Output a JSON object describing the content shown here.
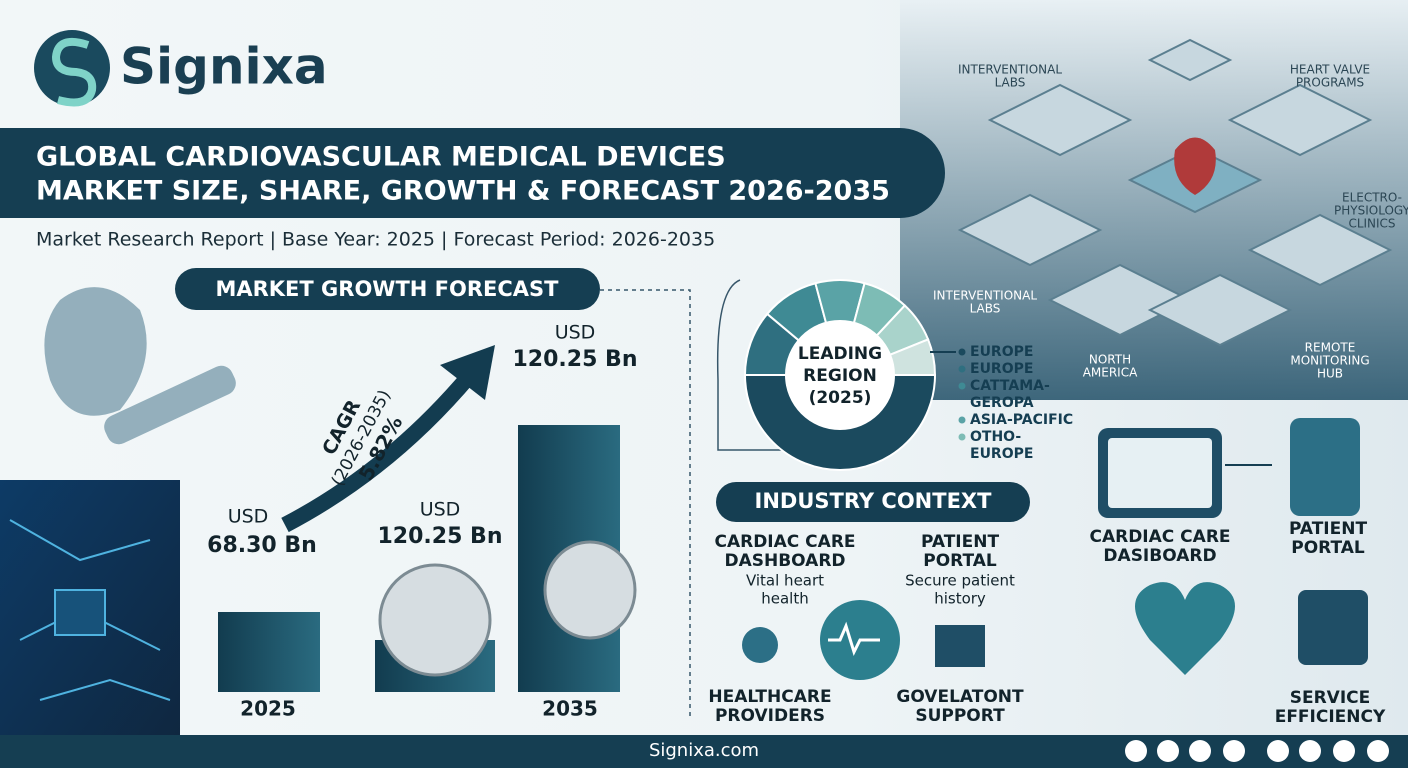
{
  "brand": {
    "name": "Signixa"
  },
  "header": {
    "title_lines": [
      "GLOBAL CARDIOVASCULAR MEDICAL DEVICES",
      "MARKET SIZE, SHARE, GROWTH & FORECAST 2026-2035"
    ],
    "subtitle": "Market Research Report | Base Year: 2025 | Forecast Period: 2026-2035"
  },
  "forecast": {
    "heading": "MARKET GROWTH FORECAST",
    "cagr": {
      "label": "CAGR",
      "period": "(2026-2035)",
      "value": "5.82%"
    },
    "bars": [
      {
        "currency": "USD",
        "amount": "68.30 Bn",
        "year": "2025"
      },
      {
        "currency": "USD",
        "amount": "120.25 Bn"
      },
      {
        "currency": "USD",
        "amount": "120.25 Bn",
        "year": "2035"
      }
    ]
  },
  "region": {
    "center_lines": [
      "LEADING",
      "REGION",
      "(2025)"
    ],
    "legend": [
      [
        "EUROPE"
      ],
      [
        "EUROPE"
      ],
      [
        "CATTAMA-",
        "GEROPA"
      ],
      [
        "ASIA-PACIFIC"
      ],
      [
        "OTHO-",
        "EUROPE"
      ]
    ]
  },
  "map_labels": [
    [
      "INTERVENTIONAL",
      "LABS"
    ],
    [
      "HEART VALVE",
      "PROGRAMS"
    ],
    [
      "ELECTRO-",
      "PHYSIOLOGY",
      "CLINICS"
    ],
    [
      "INTERVENTIONAL",
      "LABS"
    ],
    [
      "NORTH",
      "AMERICA"
    ],
    [
      "REMOTE",
      "MONITORING",
      "HUB"
    ]
  ],
  "industry": {
    "heading": "INDUSTRY CONTEXT",
    "items": [
      {
        "title": [
          "CARDIAC CARE",
          "DASHBOARD"
        ],
        "desc": [
          "Vital heart",
          "health"
        ]
      },
      {
        "title": [
          "PATIENT",
          "PORTAL"
        ],
        "desc": [
          "Secure patient",
          "history"
        ]
      },
      {
        "title": [
          "HEALTHCARE",
          "PROVIDERS"
        ]
      },
      {
        "title": [
          "GOVELATONT",
          "SUPPORT"
        ]
      }
    ]
  },
  "services": [
    [
      "CARDIAC CARE",
      "DASIBOARD"
    ],
    [
      "PATIENT",
      "PORTAL"
    ],
    [
      "SERVICE",
      "EFFICIENCY"
    ]
  ],
  "footer": {
    "site": "Signixa.com"
  }
}
